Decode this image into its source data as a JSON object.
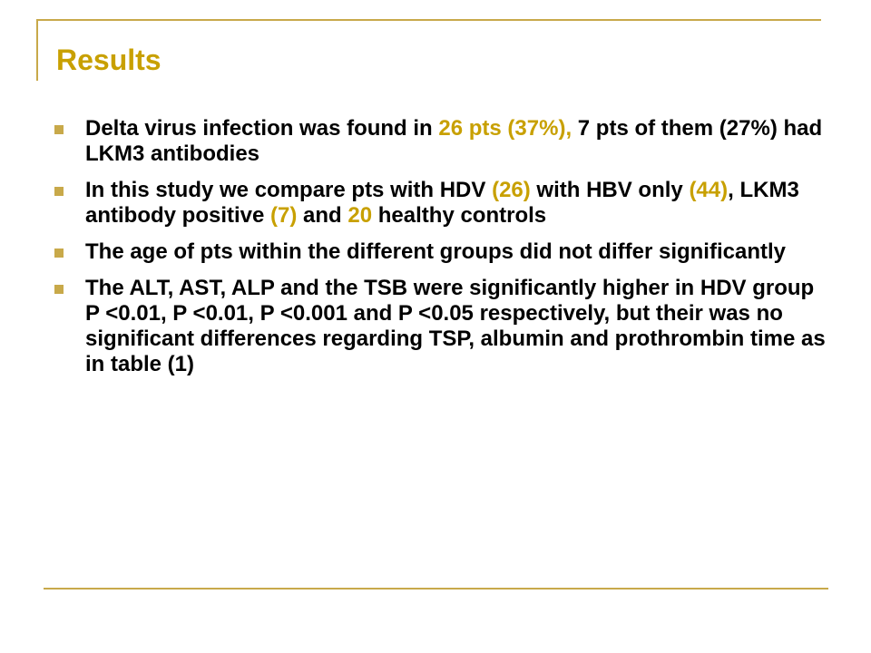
{
  "slide": {
    "title": "Results",
    "colors": {
      "accent": "#c8a000",
      "rule": "#c8a94a",
      "text": "#000000"
    },
    "bullets": [
      {
        "parts": [
          {
            "text": "Delta virus infection was found in ",
            "highlight": false
          },
          {
            "text": "26 pts (37%),",
            "highlight": true
          },
          {
            "text": " 7 pts of them (27%) had LKM3 antibodies",
            "highlight": false
          }
        ]
      },
      {
        "parts": [
          {
            "text": "In this study we compare pts with HDV ",
            "highlight": false
          },
          {
            "text": "(26)",
            "highlight": true
          },
          {
            "text": " with HBV only ",
            "highlight": false
          },
          {
            "text": "(44)",
            "highlight": true
          },
          {
            "text": ", LKM3 antibody positive ",
            "highlight": false
          },
          {
            "text": "(7)",
            "highlight": true
          },
          {
            "text": " and ",
            "highlight": false
          },
          {
            "text": "20",
            "highlight": true
          },
          {
            "text": " healthy controls",
            "highlight": false
          }
        ]
      },
      {
        "parts": [
          {
            "text": "The age of pts within the different groups did not differ significantly",
            "highlight": false
          }
        ]
      },
      {
        "parts": [
          {
            "text": "The ALT, AST, ALP and the TSB were significantly higher in HDV group P <0.01, P <0.01, P <0.001 and P <0.05 respectively, but their was no significant differences regarding TSP, albumin and prothrombin time as in table (1)",
            "highlight": false
          }
        ]
      }
    ]
  }
}
